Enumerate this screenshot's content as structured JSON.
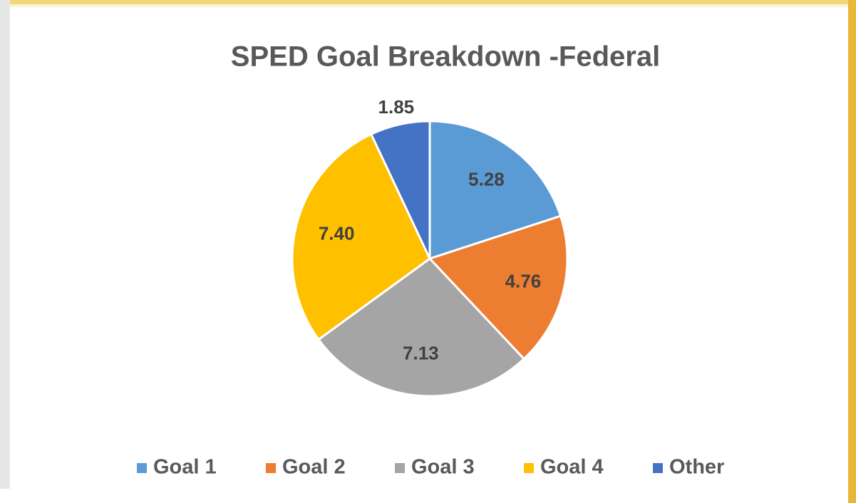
{
  "chart_data": {
    "type": "pie",
    "title": "SPED Goal Breakdown -Federal",
    "categories": [
      "Goal 1",
      "Goal 2",
      "Goal 3",
      "Goal 4",
      "Other"
    ],
    "values": [
      5.28,
      4.76,
      7.13,
      7.4,
      1.85
    ],
    "value_labels": [
      "5.28",
      "4.76",
      "7.13",
      "7.40",
      "1.85"
    ],
    "colors": [
      "#5b9bd5",
      "#ed7d31",
      "#a5a5a5",
      "#ffc000",
      "#4472c4"
    ],
    "legend": "bottom"
  }
}
